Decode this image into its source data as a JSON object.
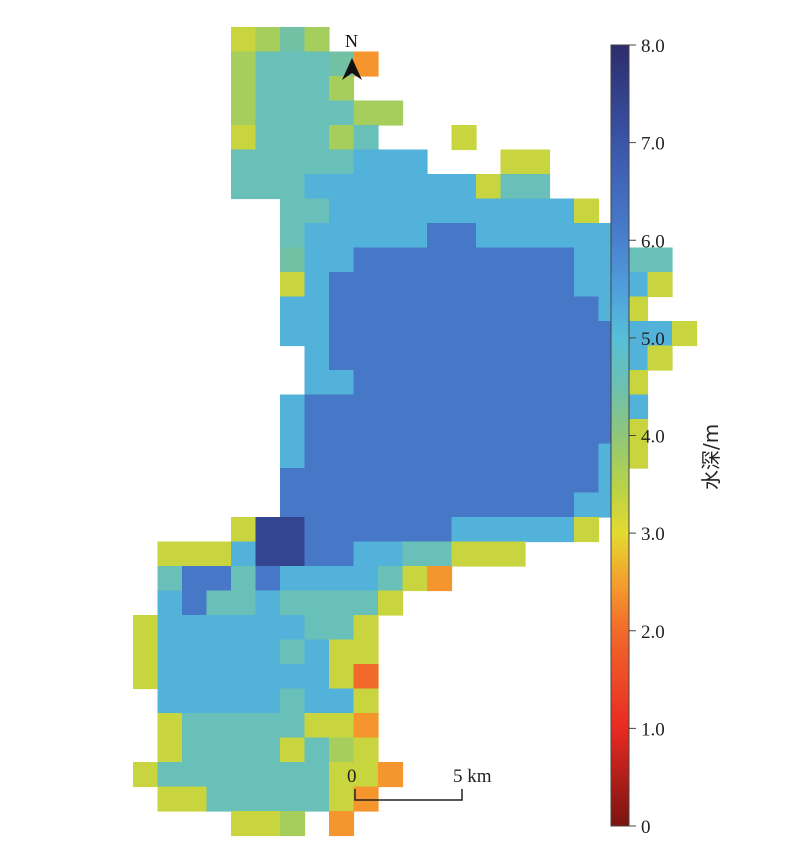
{
  "north_arrow": {
    "label": "N",
    "icon": "north-arrow-icon"
  },
  "scale_bar": {
    "start_label": "0",
    "end_label": "5 km"
  },
  "colorbar": {
    "title": "水深/m",
    "min": 0,
    "max": 8.0,
    "tick_labels": [
      "8.0",
      "7.0",
      "6.0",
      "5.0",
      "4.0",
      "3.0",
      "2.0",
      "1.0",
      "0"
    ],
    "tick_values": [
      8,
      7,
      6,
      5,
      4,
      3,
      2,
      1,
      0
    ],
    "stops": [
      {
        "v": 0.0,
        "color": "#7a1410"
      },
      {
        "v": 1.0,
        "color": "#e82a22"
      },
      {
        "v": 2.0,
        "color": "#f26a2a"
      },
      {
        "v": 2.5,
        "color": "#f4a02e"
      },
      {
        "v": 3.0,
        "color": "#e3da2f"
      },
      {
        "v": 3.5,
        "color": "#b6d24a"
      },
      {
        "v": 4.0,
        "color": "#8fc77a"
      },
      {
        "v": 4.5,
        "color": "#6cc0b0"
      },
      {
        "v": 5.0,
        "color": "#56bfd8"
      },
      {
        "v": 5.5,
        "color": "#4f9fdc"
      },
      {
        "v": 6.0,
        "color": "#4a80cf"
      },
      {
        "v": 7.0,
        "color": "#3a55a8"
      },
      {
        "v": 8.0,
        "color": "#2c2c6c"
      }
    ]
  },
  "depth_grid": {
    "units": "m",
    "grid_rows": [
      "..12 3 4 3 4 . . . . . . . . . .",
      "..3 4 4 4 2 . . . . . . . . . ."
    ],
    "rows": [
      "........AB CB.................",
      "........B4 44C2...............",
      "........B4 44B................",
      "........B4444BB...............",
      "........A444B4...A.............",
      "........44444555...AA.........",
      "........4445555555A44.........",
      "..........445555555555A.......",
      "..........45555566555555......",
      "..........C556666666665544....",
      "..........A56666666666555A....",
      "..........55666666666665A.....",
      "..........5566666666666655A...",
      "...........56666666666665A....",
      "...........5566666666666A.....",
      "..........566666666666665.....",
      "..........56666666666666A.....",
      "..........56666666666665A.....",
      "..........66666666666665......",
      "..........66666666666655......",
      "........A7766666655555A.......",
      ".....AAA577665544AAA..........",
      ".....4664655554A2.............",
      ".....564454444A...............",
      "....A55555544A................",
      "....A5555545AA................",
      "....A5555555A1................",
      ".....55555455A................",
      ".....A44444AA2................",
      ".....A4444A4BA................",
      "....A4444444AA2...............",
      ".....AA44444A2................",
      "........AAB.2................."
    ]
  }
}
